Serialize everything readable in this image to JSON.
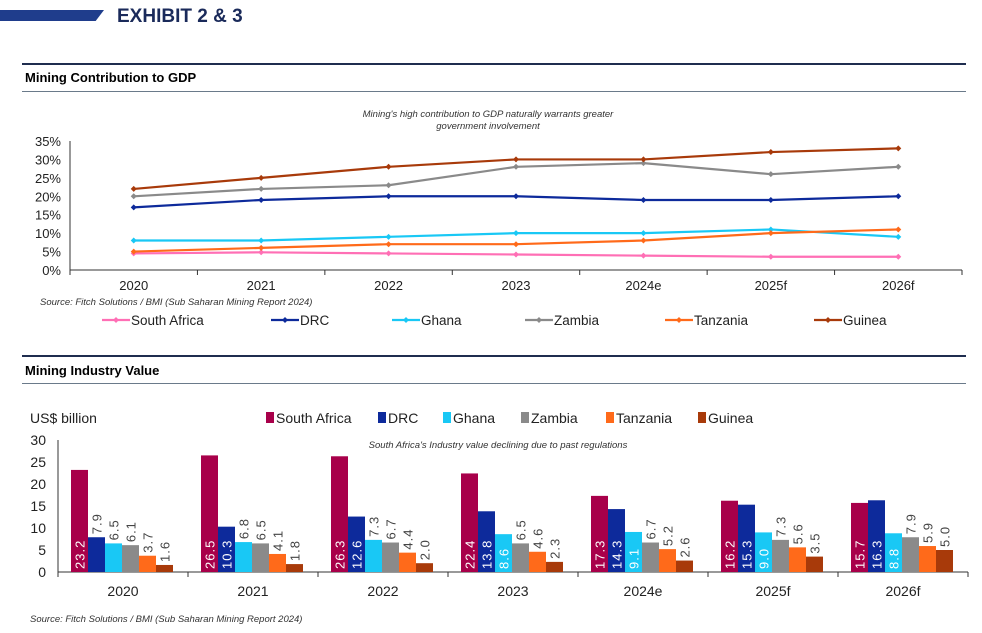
{
  "header": {
    "title": "EXHIBIT 2 & 3",
    "accent": "#1f3d8c"
  },
  "sections": [
    {
      "title": "Mining Contribution to GDP"
    },
    {
      "title": "Mining Industry Value"
    }
  ],
  "chart_data": [
    {
      "type": "line",
      "annotation": "Mining's high contribution to GDP naturally warrants greater government involvement",
      "annotation_lines": [
        "Mining's high contribution to GDP naturally warrants greater",
        "government involvement"
      ],
      "source": "Source: Fitch Solutions / BMI (Sub Saharan Mining Report 2024)",
      "categories": [
        "2020",
        "2021",
        "2022",
        "2023",
        "2024e",
        "2025f",
        "2026f"
      ],
      "ylim": [
        0,
        35
      ],
      "yticks": [
        "0%",
        "5%",
        "10%",
        "15%",
        "20%",
        "25%",
        "30%",
        "35%"
      ],
      "legend_position": "bottom",
      "series": [
        {
          "name": "South Africa",
          "color": "#ff6fb5",
          "values": [
            4.5,
            4.8,
            4.5,
            4.2,
            3.9,
            3.6,
            3.6
          ]
        },
        {
          "name": "DRC",
          "color": "#0d2a9b",
          "values": [
            17,
            19,
            20,
            20,
            19,
            19,
            20
          ]
        },
        {
          "name": "Ghana",
          "color": "#19c8f5",
          "values": [
            8,
            8,
            9,
            10,
            10,
            11,
            9
          ]
        },
        {
          "name": "Zambia",
          "color": "#8a8a8a",
          "values": [
            20,
            22,
            23,
            28,
            29,
            26,
            28
          ]
        },
        {
          "name": "Tanzania",
          "color": "#ff6a1a",
          "values": [
            5,
            6,
            7,
            7,
            8,
            10,
            11
          ]
        },
        {
          "name": "Guinea",
          "color": "#a83a0a",
          "values": [
            22,
            25,
            28,
            30,
            30,
            32,
            33
          ]
        }
      ]
    },
    {
      "type": "bar",
      "ylabel": "US$ billion",
      "annotation": "South Africa's Industry value declining due to past regulations",
      "source": "Source: Fitch Solutions / BMI (Sub Saharan Mining Report 2024)",
      "categories": [
        "2020",
        "2021",
        "2022",
        "2023",
        "2024e",
        "2025f",
        "2026f"
      ],
      "ylim": [
        0,
        30
      ],
      "yticks": [
        "0",
        "5",
        "10",
        "15",
        "20",
        "25",
        "30"
      ],
      "legend_position": "top",
      "series": [
        {
          "name": "South Africa",
          "color": "#a8004a",
          "values": [
            23.2,
            26.5,
            26.3,
            22.4,
            17.3,
            16.2,
            15.7
          ]
        },
        {
          "name": "DRC",
          "color": "#0d2a9b",
          "values": [
            7.9,
            10.3,
            12.6,
            13.8,
            14.3,
            15.3,
            16.3
          ]
        },
        {
          "name": "Ghana",
          "color": "#19c8f5",
          "values": [
            6.5,
            6.8,
            7.3,
            8.6,
            9.1,
            9.0,
            8.8
          ]
        },
        {
          "name": "Zambia",
          "color": "#8a8a8a",
          "values": [
            6.1,
            6.5,
            6.7,
            6.5,
            6.7,
            7.3,
            7.9
          ]
        },
        {
          "name": "Tanzania",
          "color": "#ff6a1a",
          "values": [
            3.7,
            4.1,
            4.4,
            4.6,
            5.2,
            5.6,
            5.9
          ]
        },
        {
          "name": "Guinea",
          "color": "#a83a0a",
          "values": [
            1.6,
            1.8,
            2.0,
            2.3,
            2.6,
            3.5,
            5.0
          ]
        }
      ]
    }
  ]
}
